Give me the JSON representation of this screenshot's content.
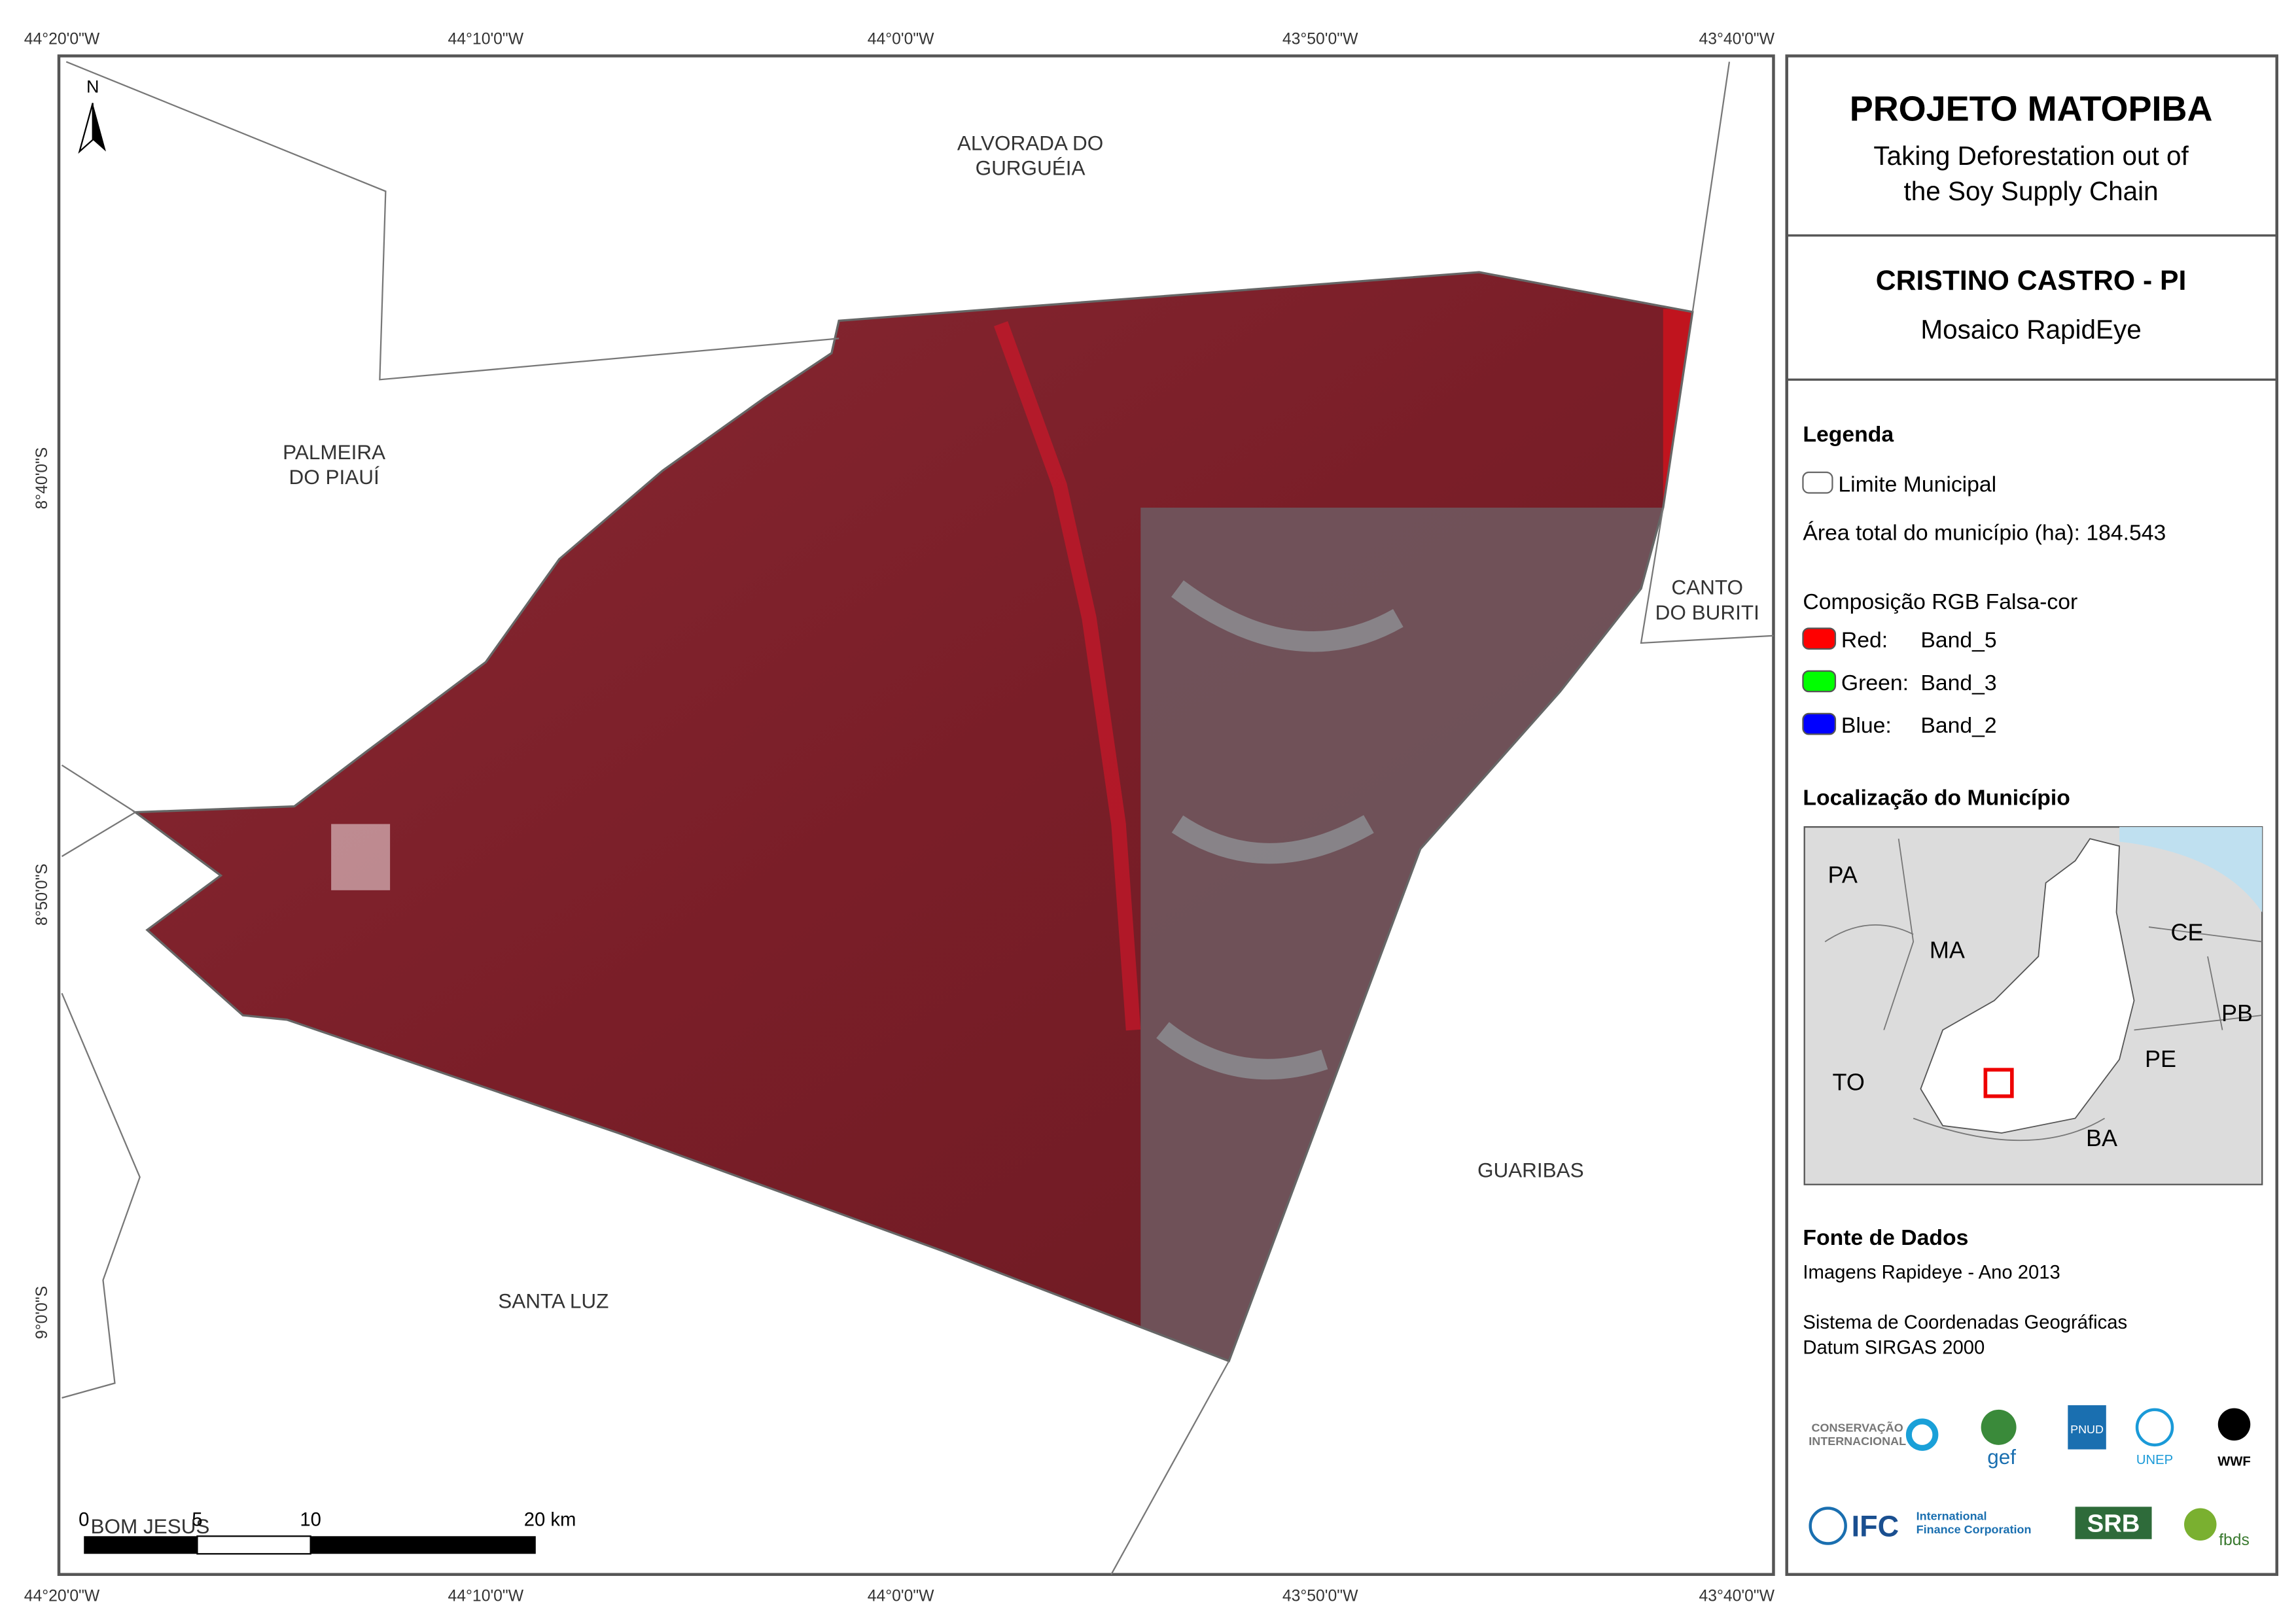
{
  "map": {
    "graticule": {
      "lon": [
        "44°20'0\"W",
        "44°10'0\"W",
        "44°0'0\"W",
        "43°50'0\"W",
        "43°40'0\"W"
      ],
      "lat": [
        "8°40'0\"S",
        "8°50'0\"S",
        "9°0'0\"S"
      ]
    },
    "north": "N",
    "places": [
      "ALVORADA DO",
      "GURGUÉIA",
      "PALMEIRA",
      "DO PIAUÍ",
      "CANTO",
      "DO BURITI",
      "GUARIBAS",
      "SANTA LUZ",
      "BOM JESUS"
    ],
    "scale_bar": [
      "0",
      "5",
      "10",
      "20 km"
    ]
  },
  "panel": {
    "title": "PROJETO MATOPIBA",
    "subtitle": [
      "Taking Deforestation out of",
      "the Soy Supply Chain"
    ],
    "map_title": "CRISTINO CASTRO - PI",
    "map_subtitle": "Mosaico RapidEye",
    "legend": {
      "heading": "Legenda",
      "boundary": "Limite Municipal",
      "area": "Área total do município (ha): 184.543",
      "composition": "Composição RGB Falsa-cor",
      "bands": [
        {
          "name": "Red:",
          "band": "Band_5",
          "color": "#ff0000"
        },
        {
          "name": "Green:",
          "band": "Band_3",
          "color": "#00ff00"
        },
        {
          "name": "Blue:",
          "band": "Band_2",
          "color": "#0000ff"
        }
      ]
    },
    "location": {
      "heading": "Localização do Município",
      "states": [
        "PA",
        "MA",
        "CE",
        "PB",
        "TO",
        "PE",
        "BA"
      ]
    },
    "sources": {
      "heading": "Fonte de Dados",
      "lines": [
        "Imagens Rapideye - Ano 2013",
        "Sistema de Coordenadas Geográficas",
        "Datum SIRGAS 2000"
      ]
    },
    "logos": [
      "CONSERVAÇÃO",
      "INTERNACIONAL",
      "gef",
      "PNUD",
      "UNEP",
      "WWF",
      "IFC",
      "International",
      "Finance Corporation",
      "SRB",
      "fbds"
    ]
  }
}
